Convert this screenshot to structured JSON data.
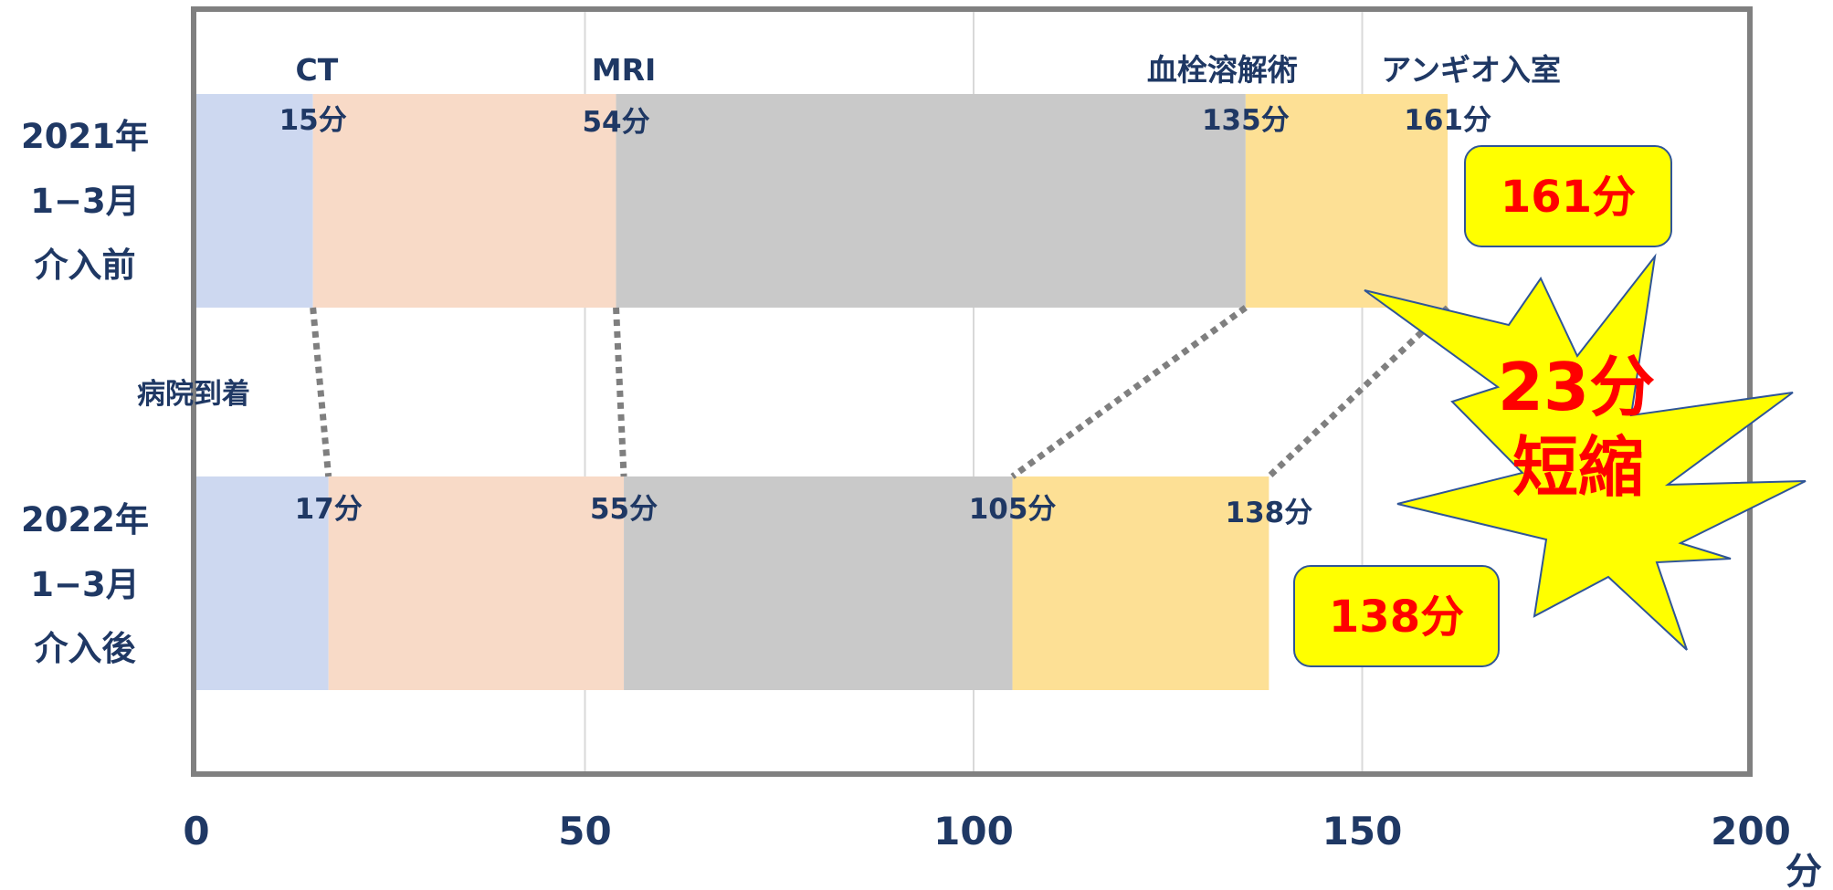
{
  "chart_data": {
    "type": "bar",
    "orientation": "horizontal",
    "stacked": true,
    "x_unit": "分",
    "xlim": [
      0,
      200
    ],
    "x_ticks": [
      0,
      50,
      100,
      150,
      200
    ],
    "grid": true,
    "axis_label_left": "病院到着",
    "milestones": [
      "CT",
      "MRI",
      "血栓溶解術",
      "アンギオ入室"
    ],
    "segment_colors": [
      "#cdd8f0",
      "#f8dac7",
      "#c9c9c9",
      "#fde095"
    ],
    "rows": [
      {
        "label_lines": [
          "2021年",
          "1−3月",
          "介入前"
        ],
        "cumulative": [
          15,
          54,
          135,
          161
        ],
        "value_labels": [
          "15分",
          "54分",
          "135分",
          "161分"
        ],
        "total_callout": "161分"
      },
      {
        "label_lines": [
          "2022年",
          "1−3月",
          "介入後"
        ],
        "cumulative": [
          17,
          55,
          105,
          138
        ],
        "value_labels": [
          "17分",
          "55分",
          "105分",
          "138分"
        ],
        "total_callout": "138分"
      }
    ],
    "burst": {
      "line1": "23分",
      "line2": "短縮",
      "fill": "#ffff00"
    }
  }
}
